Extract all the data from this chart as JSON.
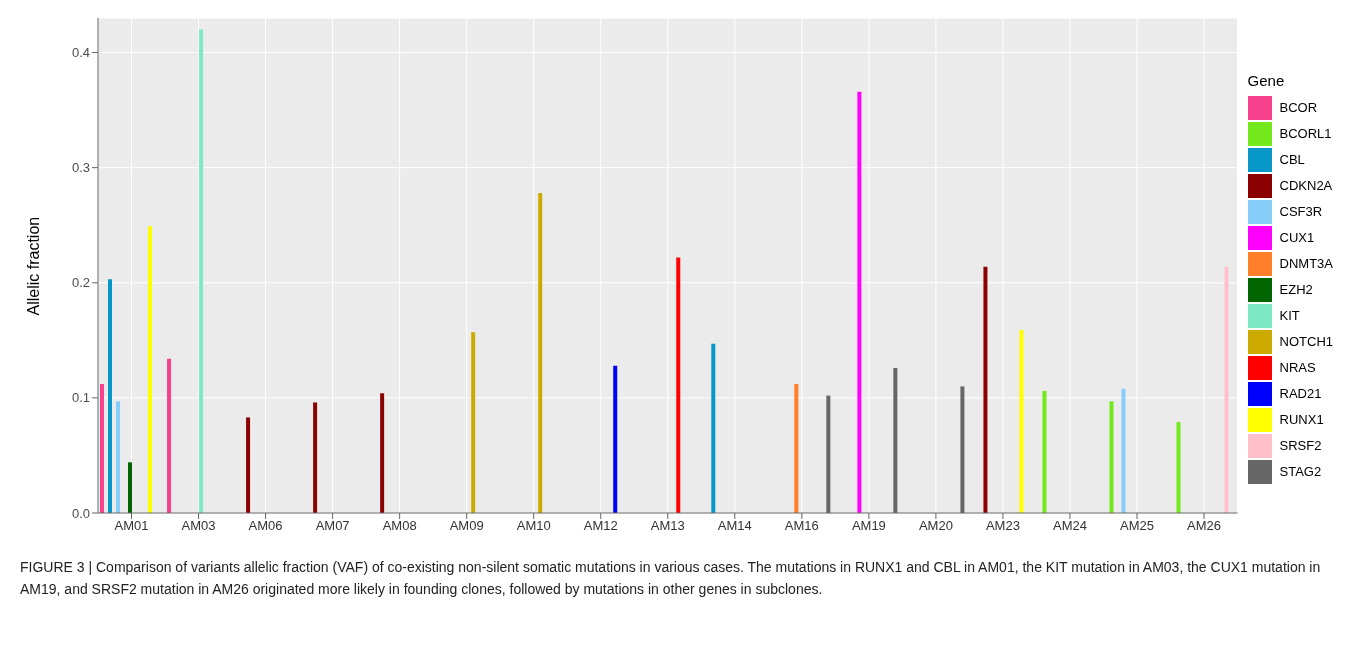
{
  "chart_data": {
    "type": "bar",
    "ylabel": "Allelic fraction",
    "legend_title": "Gene",
    "categories": [
      "AM01",
      "AM03",
      "AM06",
      "AM07",
      "AM08",
      "AM09",
      "AM10",
      "AM12",
      "AM13",
      "AM14",
      "AM16",
      "AM19",
      "AM20",
      "AM23",
      "AM24",
      "AM25",
      "AM26"
    ],
    "series": [
      {
        "name": "BCOR",
        "color": "#f8418c",
        "values": [
          0.112,
          0.134,
          null,
          null,
          null,
          null,
          null,
          null,
          null,
          null,
          null,
          null,
          null,
          null,
          null,
          null,
          null
        ]
      },
      {
        "name": "BCORL1",
        "color": "#73e81a",
        "values": [
          null,
          null,
          null,
          null,
          null,
          null,
          null,
          null,
          null,
          null,
          null,
          null,
          null,
          null,
          0.106,
          0.097,
          0.079
        ]
      },
      {
        "name": "CBL",
        "color": "#0798c9",
        "values": [
          0.203,
          null,
          null,
          null,
          null,
          null,
          null,
          null,
          null,
          0.147,
          null,
          null,
          null,
          null,
          null,
          null,
          null
        ]
      },
      {
        "name": "CDKN2A",
        "color": "#8b0000",
        "values": [
          null,
          null,
          0.083,
          0.096,
          0.104,
          null,
          null,
          null,
          null,
          null,
          null,
          null,
          null,
          0.214,
          null,
          null,
          null
        ]
      },
      {
        "name": "CSF3R",
        "color": "#87cefa",
        "values": [
          0.097,
          null,
          null,
          null,
          null,
          null,
          null,
          null,
          null,
          null,
          null,
          null,
          null,
          null,
          null,
          0.108,
          null
        ]
      },
      {
        "name": "CUX1",
        "color": "#ff00ff",
        "values": [
          null,
          null,
          null,
          null,
          null,
          null,
          null,
          null,
          null,
          null,
          null,
          0.366,
          null,
          null,
          null,
          null,
          null
        ]
      },
      {
        "name": "DNMT3A",
        "color": "#ff7f2a",
        "values": [
          null,
          null,
          null,
          null,
          null,
          null,
          null,
          null,
          null,
          null,
          0.112,
          null,
          null,
          null,
          null,
          null,
          null
        ]
      },
      {
        "name": "EZH2",
        "color": "#006400",
        "values": [
          0.044,
          null,
          null,
          null,
          null,
          null,
          null,
          null,
          null,
          null,
          null,
          null,
          null,
          null,
          null,
          null,
          null
        ]
      },
      {
        "name": "KIT",
        "color": "#7fe8c4",
        "values": [
          null,
          0.42,
          null,
          null,
          null,
          null,
          null,
          null,
          null,
          null,
          null,
          null,
          null,
          null,
          null,
          null,
          null
        ]
      },
      {
        "name": "NOTCH1",
        "color": "#cdaa00",
        "values": [
          null,
          null,
          null,
          null,
          null,
          0.157,
          0.278,
          null,
          null,
          null,
          null,
          null,
          null,
          null,
          null,
          null,
          null
        ]
      },
      {
        "name": "NRAS",
        "color": "#ff0000",
        "values": [
          null,
          null,
          null,
          null,
          null,
          null,
          null,
          null,
          0.222,
          null,
          null,
          null,
          null,
          null,
          null,
          null,
          null
        ]
      },
      {
        "name": "RAD21",
        "color": "#0000ff",
        "values": [
          null,
          null,
          null,
          null,
          null,
          null,
          null,
          0.128,
          null,
          null,
          null,
          null,
          null,
          null,
          null,
          null,
          null
        ]
      },
      {
        "name": "RUNX1",
        "color": "#ffff00",
        "values": [
          0.249,
          null,
          null,
          null,
          null,
          null,
          null,
          null,
          null,
          null,
          null,
          null,
          null,
          0.159,
          null,
          null,
          null
        ]
      },
      {
        "name": "SRSF2",
        "color": "#ffc0cb",
        "values": [
          null,
          null,
          null,
          null,
          null,
          null,
          null,
          null,
          null,
          null,
          null,
          null,
          null,
          null,
          null,
          null,
          0.214
        ]
      },
      {
        "name": "STAG2",
        "color": "#666666",
        "values": [
          null,
          null,
          null,
          null,
          null,
          null,
          null,
          null,
          null,
          null,
          0.102,
          0.126,
          0.11,
          null,
          null,
          null,
          null
        ]
      }
    ],
    "ylim": [
      0,
      0.43
    ],
    "yticks": [
      {
        "value": 0,
        "label": "0.0"
      },
      0.1,
      0.2,
      0.3,
      0.4
    ],
    "grid": true,
    "legend": "right",
    "annotations": [
      "FIGURE 3 | Comparison of variants allelic fraction (VAF) of co-existing non-silent somatic mutations in various cases. The mutations in RUNX1 and CBL in AM01, the KIT mutation in AM03, the CUX1 mutation in AM19, and SRSF2 mutation in AM26 originated more likely in founding clones, followed by mutations in other genes in subclones."
    ]
  }
}
